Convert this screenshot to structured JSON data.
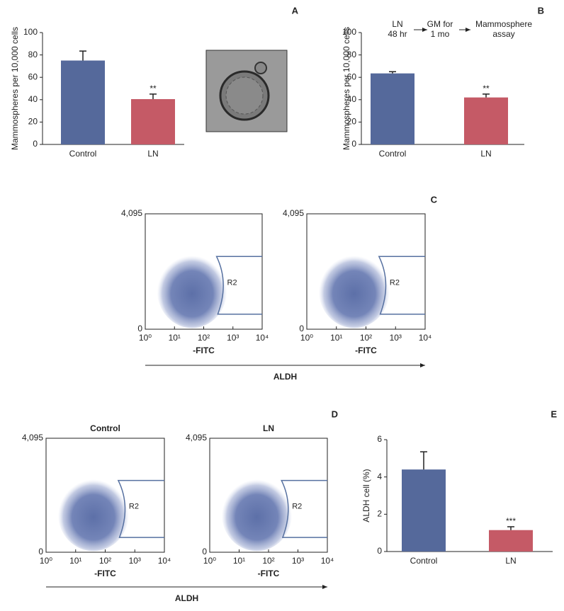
{
  "chart_data": [
    {
      "type": "bar",
      "panel_label": "A",
      "ylabel": "Mammospheres per 10,000 cells",
      "categories": [
        "Control",
        "LN"
      ],
      "values": [
        75,
        40.5
      ],
      "errors": [
        8.5,
        4.5
      ],
      "colors": [
        "#55699b",
        "#c55a66"
      ],
      "annotations": [
        {
          "category": "LN",
          "text": "**"
        }
      ],
      "ylim": [
        0,
        100
      ],
      "yticks": [
        0,
        20,
        40,
        60,
        80,
        100
      ]
    },
    {
      "type": "bar",
      "panel_label": "B",
      "ylabel": "Mammospheres per 10,000 cells",
      "steps": [
        [
          "LN",
          "48 hr"
        ],
        [
          "GM for",
          "1 mo"
        ],
        [
          "Mammosphere",
          "assay"
        ]
      ],
      "categories": [
        "Control",
        "LN"
      ],
      "values": [
        63.5,
        42
      ],
      "errors": [
        1.5,
        3
      ],
      "colors": [
        "#55699b",
        "#c55a66"
      ],
      "annotations": [
        {
          "category": "LN",
          "text": "**"
        }
      ],
      "ylim": [
        0,
        100
      ],
      "yticks": [
        0,
        20,
        40,
        60,
        80,
        100
      ]
    },
    {
      "type": "flow",
      "panel_label": "C",
      "axis_label": "ALDH",
      "xscale": "log",
      "xlim": [
        1,
        10000
      ],
      "xticks": [
        {
          "value": 1,
          "label": "10⁰"
        },
        {
          "value": 10,
          "label": "10¹"
        },
        {
          "value": 100,
          "label": "10²"
        },
        {
          "value": 1000,
          "label": "10³"
        },
        {
          "value": 10000,
          "label": "10⁴"
        }
      ],
      "ylim": [
        0,
        4095
      ],
      "yticks": [
        0,
        {
          "value": 4095,
          "label": "4,095"
        }
      ],
      "plots": [
        {
          "xlabel": "-FITC",
          "gate": "R2"
        },
        {
          "xlabel": "-FITC",
          "gate": "R2"
        }
      ]
    },
    {
      "type": "flow",
      "panel_label": "D",
      "axis_label": "ALDH",
      "xscale": "log",
      "xlim": [
        1,
        10000
      ],
      "xticks": [
        {
          "value": 1,
          "label": "10⁰"
        },
        {
          "value": 10,
          "label": "10¹"
        },
        {
          "value": 100,
          "label": "10²"
        },
        {
          "value": 1000,
          "label": "10³"
        },
        {
          "value": 10000,
          "label": "10⁴"
        }
      ],
      "ylim": [
        0,
        4095
      ],
      "yticks": [
        0,
        {
          "value": 4095,
          "label": "4,095"
        }
      ],
      "plots": [
        {
          "title": "Control",
          "xlabel": "-FITC",
          "gate": "R2"
        },
        {
          "title": "LN",
          "xlabel": "-FITC",
          "gate": "R2"
        }
      ]
    },
    {
      "type": "bar",
      "panel_label": "E",
      "ylabel": "ALDH cell (%)",
      "categories": [
        "Control",
        "LN"
      ],
      "values": [
        4.4,
        1.15
      ],
      "errors": [
        0.95,
        0.18
      ],
      "colors": [
        "#55699b",
        "#c55a66"
      ],
      "annotations": [
        {
          "category": "LN",
          "text": "***"
        }
      ],
      "ylim": [
        0,
        6
      ],
      "yticks": [
        0,
        2,
        4,
        6
      ]
    }
  ]
}
